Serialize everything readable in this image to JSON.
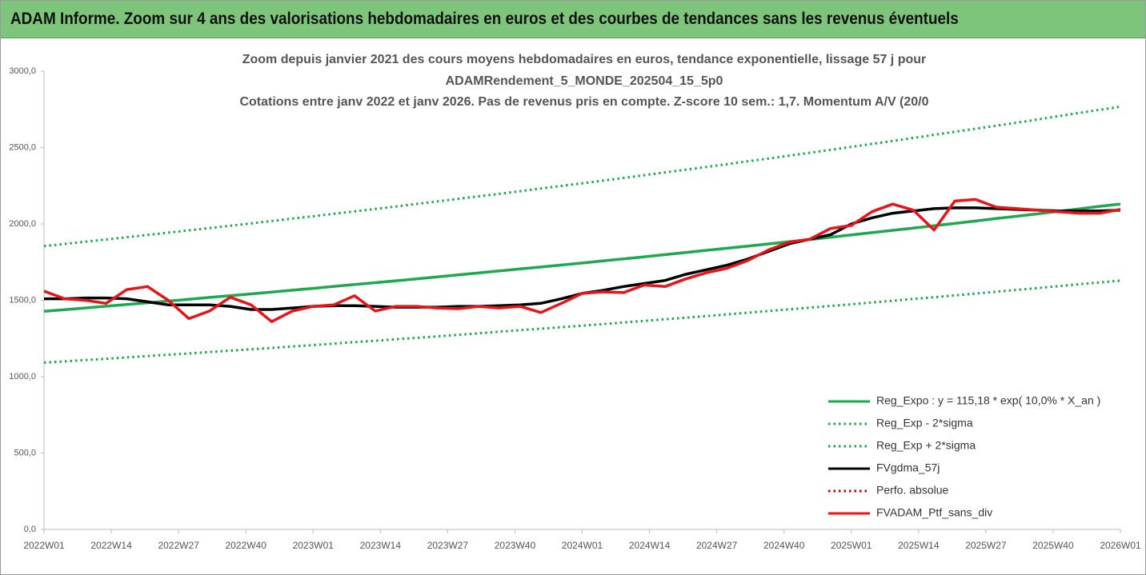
{
  "header": {
    "title": "ADAM Informe. Zoom sur 4 ans des valorisations hebdomadaires en euros et des courbes de tendances sans les revenus éventuels"
  },
  "chart_data": {
    "type": "line",
    "title_lines": [
      "Zoom depuis janvier 2021 des cours moyens hebdomadaires  en euros, tendance exponentielle, lissage 57 j pour",
      "ADAMRendement_5_MONDE_202504_15_5p0",
      "Cotations entre janv 2022 et janv 2026. Pas de revenus pris en compte. Z-score 10 sem.: 1,7. Momentum A/V (20/0"
    ],
    "x": [
      0,
      4,
      8,
      12,
      16,
      20,
      24,
      28,
      32,
      36,
      40,
      44,
      48,
      52,
      56,
      60,
      64,
      68,
      72,
      76,
      80,
      84,
      88,
      92,
      96,
      100,
      104,
      108,
      112,
      116,
      120,
      124,
      128,
      132,
      136,
      140,
      144,
      148,
      152,
      156,
      160,
      164,
      168,
      172,
      176,
      180,
      184,
      188,
      192,
      196,
      200,
      204,
      208
    ],
    "xlim": [
      0,
      208
    ],
    "xticks": [
      {
        "value": 0,
        "label": "2022W01"
      },
      {
        "value": 13,
        "label": "2022W14"
      },
      {
        "value": 26,
        "label": "2022W27"
      },
      {
        "value": 39,
        "label": "2022W40"
      },
      {
        "value": 52,
        "label": "2023W01"
      },
      {
        "value": 65,
        "label": "2023W14"
      },
      {
        "value": 78,
        "label": "2023W27"
      },
      {
        "value": 91,
        "label": "2023W40"
      },
      {
        "value": 104,
        "label": "2024W01"
      },
      {
        "value": 117,
        "label": "2024W14"
      },
      {
        "value": 130,
        "label": "2024W27"
      },
      {
        "value": 143,
        "label": "2024W40"
      },
      {
        "value": 156,
        "label": "2025W01"
      },
      {
        "value": 169,
        "label": "2025W14"
      },
      {
        "value": 182,
        "label": "2025W27"
      },
      {
        "value": 195,
        "label": "2025W40"
      },
      {
        "value": 208,
        "label": "2026W01"
      }
    ],
    "ylim": [
      0,
      3000
    ],
    "yticks": [
      {
        "value": 0,
        "label": "0,0"
      },
      {
        "value": 500,
        "label": "500,0"
      },
      {
        "value": 1000,
        "label": "1000,0"
      },
      {
        "value": 1500,
        "label": "1500,0"
      },
      {
        "value": 2000,
        "label": "2000,0"
      },
      {
        "value": 2500,
        "label": "2500,0"
      },
      {
        "value": 3000,
        "label": "3000,0"
      }
    ],
    "grid": false,
    "legend": "lower right",
    "series": [
      {
        "name": "Reg_Expo : y = 115,18 * exp( 10,0% *  X_an )",
        "color": "#1fa84f",
        "style": "solid",
        "values": [
          1428,
          1439,
          1450,
          1461,
          1473,
          1484,
          1495,
          1507,
          1519,
          1530,
          1542,
          1554,
          1566,
          1578,
          1591,
          1603,
          1615,
          1628,
          1640,
          1653,
          1666,
          1679,
          1692,
          1705,
          1718,
          1731,
          1744,
          1758,
          1771,
          1785,
          1799,
          1813,
          1827,
          1841,
          1855,
          1869,
          1884,
          1898,
          1913,
          1928,
          1943,
          1958,
          1973,
          1988,
          2003,
          2019,
          2035,
          2050,
          2066,
          2082,
          2098,
          2115,
          2130
        ]
      },
      {
        "name": "Reg_Exp - 2*sigma",
        "color": "#1fa84f",
        "style": "dotted",
        "values": [
          1092,
          1100,
          1109,
          1117,
          1126,
          1135,
          1144,
          1152,
          1161,
          1170,
          1179,
          1188,
          1198,
          1207,
          1216,
          1226,
          1235,
          1245,
          1254,
          1264,
          1274,
          1284,
          1294,
          1304,
          1314,
          1324,
          1334,
          1344,
          1355,
          1365,
          1376,
          1386,
          1397,
          1408,
          1419,
          1430,
          1441,
          1452,
          1463,
          1474,
          1486,
          1497,
          1509,
          1520,
          1532,
          1544,
          1556,
          1568,
          1580,
          1592,
          1605,
          1617,
          1629
        ]
      },
      {
        "name": "Reg_Exp + 2*sigma",
        "color": "#1fa84f",
        "style": "dotted",
        "values": [
          1855,
          1869,
          1884,
          1898,
          1913,
          1928,
          1943,
          1958,
          1973,
          1988,
          2003,
          2019,
          2035,
          2050,
          2066,
          2082,
          2098,
          2114,
          2131,
          2147,
          2164,
          2181,
          2197,
          2214,
          2232,
          2249,
          2266,
          2283,
          2301,
          2319,
          2337,
          2355,
          2373,
          2391,
          2410,
          2428,
          2447,
          2466,
          2485,
          2504,
          2524,
          2543,
          2563,
          2583,
          2603,
          2623,
          2643,
          2663,
          2684,
          2705,
          2726,
          2747,
          2767
        ]
      },
      {
        "name": "FVgdma_57j",
        "color": "#000000",
        "style": "solid",
        "values": [
          1510,
          1510,
          1515,
          1515,
          1510,
          1490,
          1470,
          1470,
          1470,
          1460,
          1440,
          1440,
          1450,
          1460,
          1465,
          1465,
          1460,
          1455,
          1455,
          1455,
          1460,
          1460,
          1465,
          1470,
          1480,
          1510,
          1545,
          1565,
          1590,
          1610,
          1630,
          1670,
          1700,
          1730,
          1770,
          1820,
          1870,
          1900,
          1930,
          2000,
          2040,
          2070,
          2085,
          2100,
          2105,
          2105,
          2100,
          2095,
          2090,
          2085,
          2085,
          2085,
          2090
        ]
      },
      {
        "name": "Perfo. absolue",
        "color": "#c00000",
        "style": "dotted"
      },
      {
        "name": "FVADAM_Ptf_sans_div",
        "color": "#e8141b",
        "style": "solid",
        "values": [
          1560,
          1510,
          1500,
          1480,
          1570,
          1590,
          1500,
          1380,
          1430,
          1520,
          1470,
          1360,
          1430,
          1460,
          1470,
          1530,
          1430,
          1460,
          1460,
          1450,
          1445,
          1460,
          1450,
          1460,
          1420,
          1480,
          1545,
          1555,
          1550,
          1600,
          1590,
          1640,
          1680,
          1710,
          1760,
          1830,
          1880,
          1900,
          1970,
          1990,
          2080,
          2130,
          2090,
          1960,
          2150,
          2160,
          2110,
          2100,
          2090,
          2080,
          2070,
          2070,
          2095
        ]
      }
    ]
  }
}
